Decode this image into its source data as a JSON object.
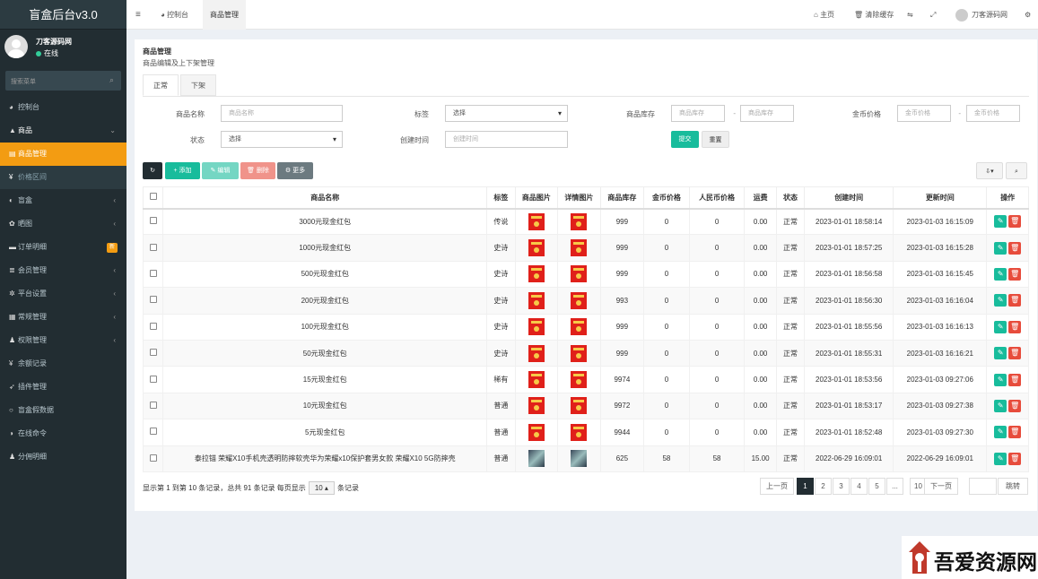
{
  "sidebar": {
    "logo": "盲盒后台v3.0",
    "user_name": "刀客源码网",
    "user_status": "在线",
    "search_placeholder": "搜索菜单",
    "items": [
      {
        "label": "控制台",
        "icon": "dashboard-icon",
        "arrow": ""
      },
      {
        "label": "商品",
        "icon": "shop-icon",
        "arrow": "⌄"
      },
      {
        "label": "商品管理",
        "icon": "goods-icon",
        "arrow": ""
      },
      {
        "label": "价格区间",
        "icon": "yen-icon",
        "arrow": ""
      },
      {
        "label": "盲盒",
        "icon": "box-icon",
        "arrow": "‹"
      },
      {
        "label": "晒图",
        "icon": "photo-icon",
        "arrow": "‹"
      },
      {
        "label": "订单明细",
        "icon": "cart-icon",
        "arrow": "",
        "badge": "新"
      },
      {
        "label": "会员管理",
        "icon": "list-icon",
        "arrow": "‹"
      },
      {
        "label": "平台设置",
        "icon": "gear-icon",
        "arrow": "‹"
      },
      {
        "label": "常规管理",
        "icon": "cogs-icon",
        "arrow": "‹"
      },
      {
        "label": "权限管理",
        "icon": "users-icon",
        "arrow": "‹"
      },
      {
        "label": "余额记录",
        "icon": "yen-icon",
        "arrow": ""
      },
      {
        "label": "插件管理",
        "icon": "rocket-icon",
        "arrow": ""
      },
      {
        "label": "盲盒假数据",
        "icon": "circle-icon",
        "arrow": ""
      },
      {
        "label": "在线命令",
        "icon": "terminal-icon",
        "arrow": ""
      },
      {
        "label": "分佣明细",
        "icon": "users-icon",
        "arrow": ""
      }
    ]
  },
  "topbar": {
    "menu_toggle": "≡",
    "tab_dashboard": "控制台",
    "tab_goods": "商品管理",
    "home": "主页",
    "clear_cache": "清除缓存",
    "user_name": "刀客源码网"
  },
  "page": {
    "title": "商品管理",
    "subtitle": "商品编辑及上下架管理",
    "tab_normal": "正常",
    "tab_off": "下架"
  },
  "filters": {
    "name_label": "商品名称",
    "name_placeholder": "商品名称",
    "tag_label": "标签",
    "tag_value": "选择",
    "stock_label": "商品库存",
    "stock_min_placeholder": "商品库存",
    "stock_max_placeholder": "商品库存",
    "gold_label": "金币价格",
    "gold_min_placeholder": "金币价格",
    "gold_max_placeholder": "金币价格",
    "status_label": "状态",
    "status_value": "选择",
    "created_label": "创建时间",
    "created_placeholder": "创建时间",
    "submit": "提交",
    "reset": "重置",
    "dash": "-"
  },
  "toolbar": {
    "add": "+ 添加",
    "edit": "✎ 编辑",
    "delete": "🗑 删除",
    "more": "⚙ 更多"
  },
  "table": {
    "headers": [
      "商品名称",
      "标签",
      "商品图片",
      "详情图片",
      "商品库存",
      "金币价格",
      "人民币价格",
      "运费",
      "状态",
      "创建时间",
      "更新时间",
      "操作"
    ],
    "rows": [
      {
        "name": "3000元现金红包",
        "tag": "传说",
        "tag_class": "tag-cs",
        "img": "red",
        "stock": "999",
        "gold": "0",
        "rmb": "0",
        "freight": "0.00",
        "status": "正常",
        "created": "2023-01-01 18:58:14",
        "updated": "2023-01-03 16:15:09"
      },
      {
        "name": "1000元现金红包",
        "tag": "史诗",
        "tag_class": "tag-ss",
        "img": "red",
        "stock": "999",
        "gold": "0",
        "rmb": "0",
        "freight": "0.00",
        "status": "正常",
        "created": "2023-01-01 18:57:25",
        "updated": "2023-01-03 16:15:28"
      },
      {
        "name": "500元现金红包",
        "tag": "史诗",
        "tag_class": "tag-ss",
        "img": "red",
        "stock": "999",
        "gold": "0",
        "rmb": "0",
        "freight": "0.00",
        "status": "正常",
        "created": "2023-01-01 18:56:58",
        "updated": "2023-01-03 16:15:45"
      },
      {
        "name": "200元现金红包",
        "tag": "史诗",
        "tag_class": "tag-ss",
        "img": "red",
        "stock": "993",
        "gold": "0",
        "rmb": "0",
        "freight": "0.00",
        "status": "正常",
        "created": "2023-01-01 18:56:30",
        "updated": "2023-01-03 16:16:04"
      },
      {
        "name": "100元现金红包",
        "tag": "史诗",
        "tag_class": "tag-ss",
        "img": "red",
        "stock": "999",
        "gold": "0",
        "rmb": "0",
        "freight": "0.00",
        "status": "正常",
        "created": "2023-01-01 18:55:56",
        "updated": "2023-01-03 16:16:13"
      },
      {
        "name": "50元现金红包",
        "tag": "史诗",
        "tag_class": "tag-ss",
        "img": "red",
        "stock": "999",
        "gold": "0",
        "rmb": "0",
        "freight": "0.00",
        "status": "正常",
        "created": "2023-01-01 18:55:31",
        "updated": "2023-01-03 16:16:21"
      },
      {
        "name": "15元现金红包",
        "tag": "稀有",
        "tag_class": "tag-xy",
        "img": "red",
        "stock": "9974",
        "gold": "0",
        "rmb": "0",
        "freight": "0.00",
        "status": "正常",
        "created": "2023-01-01 18:53:56",
        "updated": "2023-01-03 09:27:06"
      },
      {
        "name": "10元现金红包",
        "tag": "普通",
        "tag_class": "tag-pt",
        "img": "red",
        "stock": "9972",
        "gold": "0",
        "rmb": "0",
        "freight": "0.00",
        "status": "正常",
        "created": "2023-01-01 18:53:17",
        "updated": "2023-01-03 09:27:38"
      },
      {
        "name": "5元现金红包",
        "tag": "普通",
        "tag_class": "tag-pt",
        "img": "red",
        "stock": "9944",
        "gold": "0",
        "rmb": "0",
        "freight": "0.00",
        "status": "正常",
        "created": "2023-01-01 18:52:48",
        "updated": "2023-01-03 09:27:30"
      },
      {
        "name": "泰拉锚 荣耀X10手机壳透明防摔软壳华为荣耀x10保护套男女款 荣耀X10 5G防摔壳",
        "tag": "普通",
        "tag_class": "tag-pt",
        "img": "phone",
        "stock": "625",
        "gold": "58",
        "rmb": "58",
        "freight": "15.00",
        "status": "正常",
        "created": "2022-06-29 16:09:01",
        "updated": "2022-06-29 16:09:01"
      }
    ]
  },
  "footer": {
    "info_before": "显示第 1 到第 10 条记录，总共 91 条记录 每页显示",
    "page_size": "10 ▴",
    "info_after": "条记录",
    "prev": "上一页",
    "pages": [
      "1",
      "2",
      "3",
      "4",
      "5",
      "...",
      "10"
    ],
    "next": "下一页",
    "jump": "跳转"
  },
  "watermark": {
    "text": "吾爱资源网"
  },
  "colors": {
    "sidebar": "#222d32",
    "active": "#f39c12",
    "success": "#18bc9c",
    "danger": "#e74c3c",
    "dark": "#222d32"
  }
}
